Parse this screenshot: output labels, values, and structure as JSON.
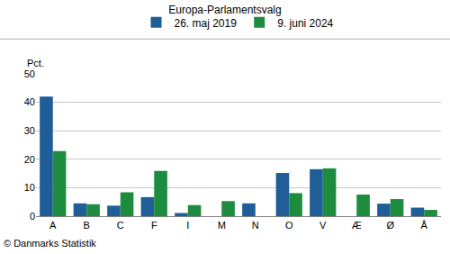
{
  "chart_data": {
    "type": "bar",
    "title": "Europa-Parlamentsvalg",
    "ylabel": "Pct.",
    "source": "© Danmarks Statistik",
    "categories": [
      "A",
      "B",
      "C",
      "F",
      "I",
      "M",
      "N",
      "O",
      "V",
      "Æ",
      "Ø",
      "Å"
    ],
    "series": [
      {
        "name": "26. maj 2019",
        "color": "#1f5e98",
        "values": [
          42,
          4.5,
          3.7,
          6.7,
          1.1,
          null,
          4.5,
          15.2,
          16.5,
          null,
          4.4,
          3.0
        ]
      },
      {
        "name": "9. juni 2024",
        "color": "#1e8c3f",
        "values": [
          22.9,
          4.2,
          8.4,
          15.9,
          3.9,
          5.3,
          null,
          8.1,
          16.8,
          7.6,
          6.0,
          2.2
        ]
      }
    ],
    "ylim": [
      0,
      50
    ],
    "yticks": [
      0,
      10,
      20,
      30,
      40,
      50
    ],
    "grid": true,
    "legend": "top"
  }
}
